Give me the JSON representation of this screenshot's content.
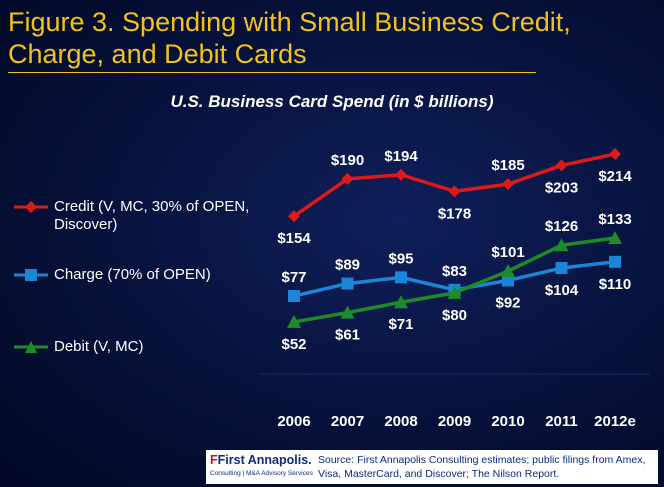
{
  "figure_title": "Figure 3.  Spending with Small Business Credit, Charge, and Debit Cards",
  "chart_data": {
    "type": "line",
    "title": "U.S. Business Card Spend (in $ billions)",
    "xlabel": "",
    "ylabel": "",
    "categories": [
      "2006",
      "2007",
      "2008",
      "2009",
      "2010",
      "2011",
      "2012e"
    ],
    "ylim": [
      0,
      240
    ],
    "grid": false,
    "legend_position": "left",
    "series": [
      {
        "name": "Credit (V, MC, 30% of OPEN, Discover)",
        "color": "#dd1a1a",
        "marker": "diamond",
        "values": [
          154,
          190,
          194,
          178,
          185,
          203,
          214
        ],
        "labels": [
          "$154",
          "$190",
          "$194",
          "$178",
          "$185",
          "$203",
          "$214"
        ]
      },
      {
        "name": "Charge (70% of OPEN)",
        "color": "#1b86d8",
        "marker": "square",
        "values": [
          77,
          89,
          95,
          83,
          92,
          104,
          110
        ],
        "labels": [
          "$77",
          "$89",
          "$95",
          "$83",
          "$92",
          "$104",
          "$110"
        ]
      },
      {
        "name": "Debit (V, MC)",
        "color": "#1f8a2a",
        "marker": "triangle",
        "values": [
          52,
          61,
          71,
          80,
          101,
          126,
          133
        ],
        "labels": [
          "$52",
          "$61",
          "$71",
          "$80",
          "$101",
          "$126",
          "$133"
        ]
      }
    ]
  },
  "footer": {
    "logo_name": "First Annapolis.",
    "logo_tagline": "Consulting | M&A Advisory Services",
    "source_text": "Source:  First Annapolis Consulting estimates; public filings from Amex, Visa, MasterCard, and Discover; The Nilson Report."
  },
  "colors": {
    "background": "#06113a",
    "title": "#f2c21b",
    "text": "#ffffff"
  },
  "icons": {
    "logo_mark": "fa-monogram-icon"
  }
}
